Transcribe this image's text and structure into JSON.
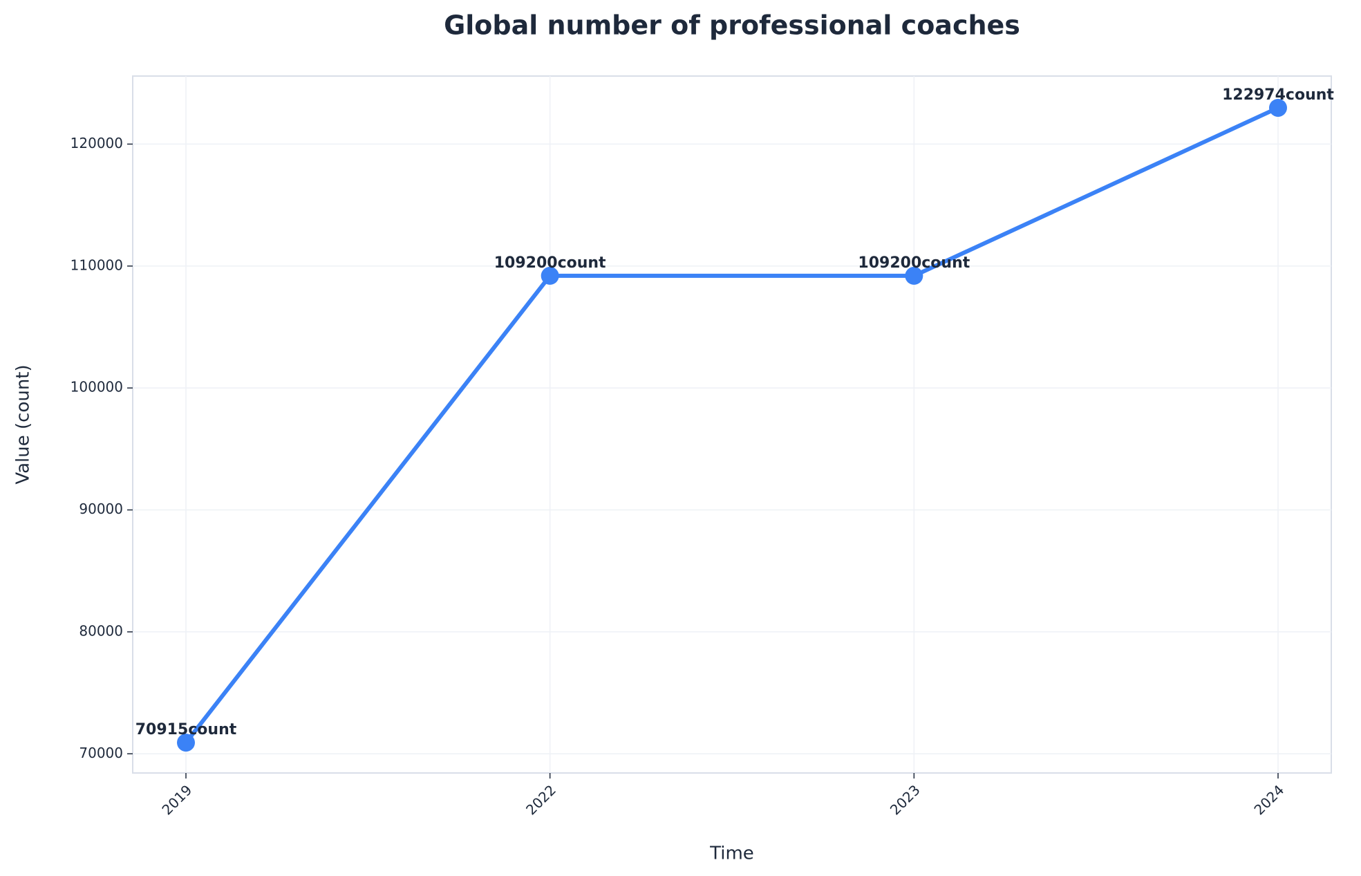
{
  "chart_data": {
    "type": "line",
    "title": "Global number of professional coaches",
    "x_label": "Time",
    "y_label": "Value (count)",
    "categories": [
      "2019",
      "2022",
      "2023",
      "2024"
    ],
    "series": [
      {
        "name": "Global number of professional coaches",
        "color": "#3b82f6",
        "values": [
          70915,
          109200,
          109200,
          122974
        ],
        "value_labels": [
          "70915count",
          "109200count",
          "109200count",
          "122974count"
        ]
      }
    ],
    "ylim": [
      68427,
      125580
    ],
    "yticks": [
      70000,
      80000,
      90000,
      100000,
      110000,
      120000
    ],
    "grid": true
  }
}
